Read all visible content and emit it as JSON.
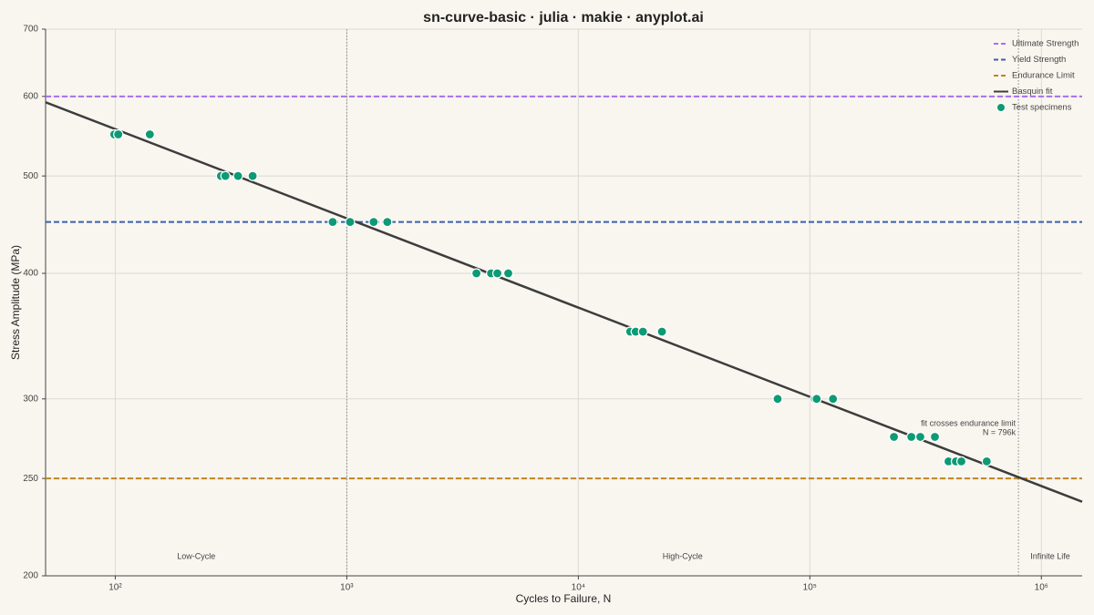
{
  "chart_data": {
    "type": "scatter",
    "title": "sn-curve-basic · julia · makie · anyplot.ai",
    "x_label": "Cycles to Failure, N",
    "y_label": "Stress Amplitude (MPa)",
    "xlog": true,
    "ylog": true,
    "grid": true,
    "legend": "top-right",
    "xlim": [
      50,
      1500000
    ],
    "ylim": [
      200,
      700
    ],
    "xticks": [
      {
        "value": 100,
        "label": "10²"
      },
      {
        "value": 1000,
        "label": "10³"
      },
      {
        "value": 10000,
        "label": "10⁴"
      },
      {
        "value": 100000,
        "label": "10⁵"
      },
      {
        "value": 1000000,
        "label": "10⁶"
      }
    ],
    "yticks": [
      200,
      250,
      300,
      400,
      500,
      600,
      700
    ],
    "reference_lines": [
      {
        "name": "Ultimate Strength",
        "color": "#a66ff0",
        "value": 600
      },
      {
        "name": "Yield Strength",
        "color": "#3a5fb0",
        "value": 450
      },
      {
        "name": "Endurance Limit",
        "color": "#c0851f",
        "value": 250
      }
    ],
    "series": [
      {
        "name": "Basquin fit",
        "kind": "line",
        "color": "#3d3d3d",
        "x": [
          50,
          1500000
        ],
        "values": [
          592,
          237
        ]
      },
      {
        "name": "Test specimens",
        "kind": "scatter",
        "color": "#0e9a74",
        "x": [
          99,
          103,
          141,
          286,
          299,
          339,
          392,
          869,
          1033,
          1306,
          1496,
          3630,
          4199,
          4470,
          4982,
          16750,
          17690,
          19010,
          22970,
          72580,
          105100,
          107000,
          125900,
          230800,
          274300,
          300000,
          346800,
          397200,
          427300,
          451300,
          580700
        ],
        "values": [
          550,
          550,
          550,
          500,
          500,
          500,
          500,
          450,
          450,
          450,
          450,
          400,
          400,
          400,
          400,
          350,
          350,
          350,
          350,
          300,
          300,
          300,
          300,
          275,
          275,
          275,
          275,
          260,
          260,
          260,
          260
        ]
      }
    ],
    "region_bounds": [
      1000,
      796000
    ],
    "region_labels": [
      "Low-Cycle",
      "High-Cycle",
      "Infinite Life"
    ],
    "annotation": [
      "fit crosses endurance limit",
      "N = 796k"
    ]
  }
}
